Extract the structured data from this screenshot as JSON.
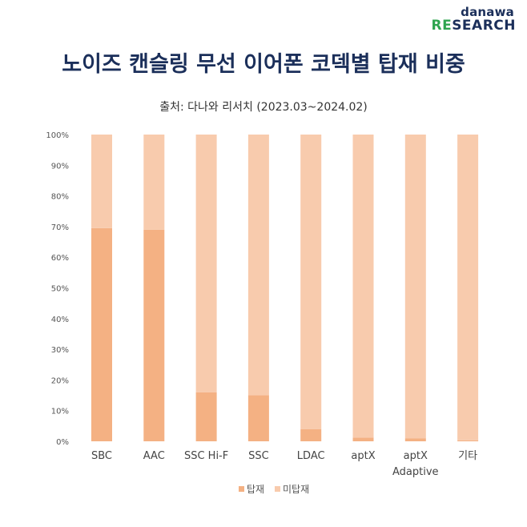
{
  "logo": {
    "top": "danawa",
    "bottom_accent": "RE",
    "bottom_rest": "SEARCH"
  },
  "colors": {
    "equipped": "#f4b183",
    "not_equipped": "#f8cbad",
    "title": "#1b2f5a",
    "logo_accent": "#2ea44f"
  },
  "chart_data": {
    "type": "bar",
    "stacked": true,
    "title": "노이즈 캔슬링 무선 이어폰 코덱별 탑재 비중",
    "subtitle": "출처: 다나와 리서치 (2023.03~2024.02)",
    "categories": [
      [
        "SBC"
      ],
      [
        "AAC"
      ],
      [
        "SSC Hi-F"
      ],
      [
        "SSC"
      ],
      [
        "LDAC"
      ],
      [
        "aptX"
      ],
      [
        "aptX",
        "Adaptive"
      ],
      [
        "기타"
      ]
    ],
    "series": [
      {
        "name": "탑재",
        "values": [
          69.5,
          69.0,
          16.0,
          15.0,
          4.0,
          1.2,
          1.0,
          0.3
        ]
      },
      {
        "name": "미탑재",
        "values": [
          30.5,
          31.0,
          84.0,
          85.0,
          96.0,
          98.8,
          99.0,
          99.7
        ]
      }
    ],
    "yticks": [
      "0%",
      "10%",
      "20%",
      "30%",
      "40%",
      "50%",
      "60%",
      "70%",
      "80%",
      "90%",
      "100%"
    ],
    "ylim": [
      0,
      100
    ],
    "grid": false,
    "legend_position": "bottom"
  }
}
